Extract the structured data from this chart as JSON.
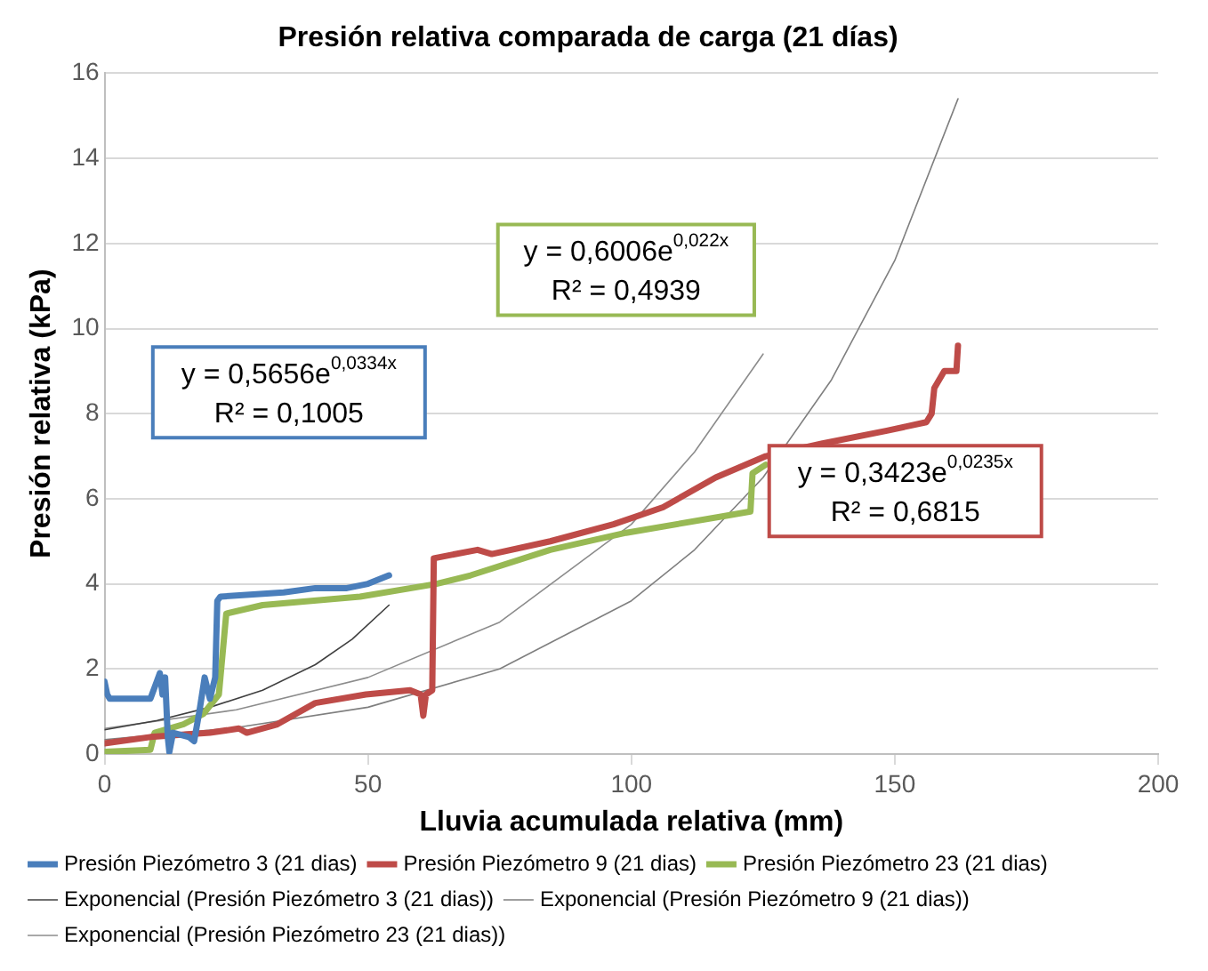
{
  "chart_data": {
    "type": "line",
    "title": "Presión relativa comparada de carga (21 días)",
    "xlabel": "Lluvia acumulada relativa (mm)",
    "ylabel": "Presión relativa (kPa)",
    "xlim": [
      0,
      200
    ],
    "xticks": [
      0,
      50,
      100,
      150,
      200
    ],
    "ylim": [
      0,
      16
    ],
    "yticks": [
      0,
      2,
      4,
      6,
      8,
      10,
      12,
      14,
      16
    ],
    "grid": "y",
    "legend": "bottom",
    "marker": "none",
    "line_style": "solid",
    "series": [
      {
        "name": "Presión Piezómetro 3 (21 dias)",
        "color": "#4a7ebb",
        "x": [
          0,
          0.5,
          1,
          8.7,
          9,
          10.5,
          11,
          11.5,
          12,
          12.3,
          13,
          16,
          17,
          18,
          19,
          20,
          21,
          21.4,
          22,
          34,
          40,
          46,
          50,
          54
        ],
        "values": [
          1.7,
          1.4,
          1.3,
          1.3,
          1.4,
          1.9,
          1.4,
          1.8,
          0.4,
          0.05,
          0.5,
          0.4,
          0.3,
          1.0,
          1.8,
          1.3,
          1.8,
          3.6,
          3.7,
          3.8,
          3.9,
          3.9,
          4.0,
          4.2
        ]
      },
      {
        "name": "Presión Piezómetro 9 (21 dias)",
        "color": "#be4b48",
        "x": [
          0,
          8.7,
          20,
          25.5,
          27,
          32.8,
          40,
          49.6,
          58,
          60,
          60.5,
          61,
          62.2,
          62.5,
          70.8,
          73.5,
          84.6,
          96.6,
          106,
          116,
          125.5,
          132.7,
          136.3,
          148.5,
          156,
          157,
          157.5,
          159.4,
          161.7,
          162
        ],
        "values": [
          0.25,
          0.4,
          0.5,
          0.6,
          0.5,
          0.7,
          1.2,
          1.4,
          1.5,
          1.4,
          0.9,
          1.4,
          1.5,
          4.6,
          4.8,
          4.7,
          5.0,
          5.4,
          5.8,
          6.5,
          7.0,
          7.2,
          7.3,
          7.6,
          7.8,
          8.0,
          8.6,
          9.0,
          9.0,
          9.6
        ]
      },
      {
        "name": "Presión Piezómetro 23 (21 dias)",
        "color": "#98b954",
        "x": [
          0,
          8.7,
          9.5,
          15,
          18.8,
          21.7,
          23.1,
          30,
          48.5,
          63,
          69.5,
          84.6,
          99,
          118,
          122.6,
          123,
          125.5
        ],
        "values": [
          0.05,
          0.1,
          0.5,
          0.7,
          0.95,
          1.4,
          3.3,
          3.5,
          3.7,
          4.0,
          4.2,
          4.8,
          5.2,
          5.6,
          5.7,
          6.6,
          6.8
        ]
      },
      {
        "name": "Exponencial (Presión Piezómetro 3 (21 dias))",
        "color": "#404040",
        "x": [
          0,
          10,
          20,
          30,
          40,
          47,
          54
        ],
        "values": [
          0.57,
          0.79,
          1.1,
          1.5,
          2.1,
          2.7,
          3.5
        ]
      },
      {
        "name": "Exponencial (Presión Piezómetro 9 (21 dias))",
        "color": "#7f7f7f",
        "x": [
          0,
          25,
          50,
          75,
          100,
          112,
          125,
          138,
          150,
          162
        ],
        "values": [
          0.34,
          0.62,
          1.1,
          2.0,
          3.6,
          4.8,
          6.5,
          8.8,
          11.6,
          15.4
        ]
      },
      {
        "name": "Exponencial (Presión Piezómetro 23 (21 dias))",
        "color": "#8c8c8c",
        "x": [
          0,
          25,
          50,
          75,
          100,
          112,
          125
        ],
        "values": [
          0.6,
          1.04,
          1.8,
          3.1,
          5.4,
          7.1,
          9.4
        ]
      }
    ],
    "annotations": [
      "y = 0,5656e$^{0,0334x}$",
      "R² = 0,1005",
      "y = 0,3423e$^{0,0235x}$",
      "R² = 0,6815",
      "y = 0,6006e$^{0,022x}$",
      "R² = 0,4939"
    ]
  }
}
